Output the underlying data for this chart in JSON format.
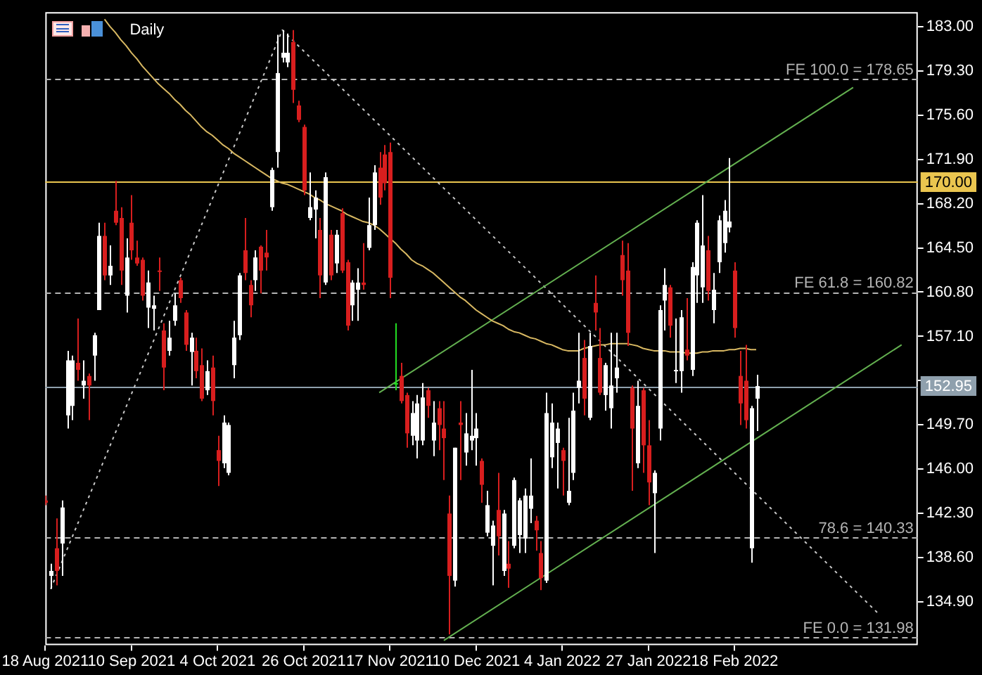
{
  "chart_data": {
    "type": "candlestick",
    "title": "Daily",
    "categories": [
      "18 Aug 2021",
      null,
      null,
      null,
      null,
      null,
      null,
      null,
      null,
      null,
      null,
      null,
      null,
      null,
      null,
      null,
      "10 Sep 2021",
      null,
      null,
      null,
      null,
      null,
      null,
      null,
      null,
      null,
      null,
      null,
      null,
      null,
      null,
      null,
      "4 Oct 2021",
      null,
      null,
      null,
      null,
      null,
      null,
      null,
      null,
      null,
      null,
      null,
      null,
      null,
      null,
      null,
      "26 Oct 2021",
      null,
      null,
      null,
      null,
      null,
      null,
      null,
      null,
      null,
      null,
      null,
      null,
      null,
      null,
      null,
      "17 Nov 2021",
      null,
      null,
      null,
      null,
      null,
      null,
      null,
      null,
      null,
      null,
      null,
      null,
      null,
      null,
      null,
      "10 Dec 2021",
      null,
      null,
      null,
      null,
      null,
      null,
      null,
      null,
      null,
      null,
      null,
      null,
      null,
      null,
      null,
      "4 Jan 2022",
      null,
      null,
      null,
      null,
      null,
      null,
      null,
      null,
      null,
      null,
      null,
      null,
      null,
      null,
      null,
      "27 Jan 2022",
      null,
      null,
      null,
      null,
      null,
      null,
      null,
      null,
      null,
      null,
      null,
      null,
      null,
      null,
      null,
      "18 Feb 2022",
      null,
      null,
      null,
      null,
      null,
      null,
      null,
      null,
      null,
      null,
      null,
      null,
      null,
      null,
      null,
      null,
      null,
      null,
      null,
      null,
      null,
      null,
      null,
      null,
      null,
      null,
      null,
      null,
      null,
      null,
      null,
      null,
      null,
      null
    ],
    "ohlc": [
      [
        143.4,
        143.8,
        143.0,
        143.2
      ],
      [
        137.1,
        138.1,
        136.0,
        137.5
      ],
      [
        139.4,
        141.9,
        136.3,
        137.5
      ],
      [
        139.8,
        143.4,
        137.1,
        142.8
      ],
      [
        150.5,
        155.9,
        149.4,
        155.1
      ],
      [
        151.3,
        155.5,
        150.1,
        155.1
      ],
      [
        154.9,
        158.6,
        153.4,
        154.3
      ],
      [
        153.0,
        155.1,
        151.9,
        153.4
      ],
      [
        153.8,
        154.0,
        150.1,
        153.0
      ],
      [
        155.5,
        157.4,
        153.4,
        157.2
      ],
      [
        159.3,
        166.6,
        159.3,
        165.5
      ],
      [
        165.5,
        166.6,
        161.8,
        162.2
      ],
      [
        162.2,
        164.7,
        161.4,
        163.0
      ],
      [
        167.6,
        170.1,
        166.4,
        166.6
      ],
      [
        167.0,
        167.9,
        161.4,
        162.6
      ],
      [
        160.5,
        165.3,
        159.1,
        163.7
      ],
      [
        166.6,
        168.9,
        163.5,
        164.3
      ],
      [
        163.7,
        165.1,
        163.0,
        163.2
      ],
      [
        163.5,
        163.7,
        160.1,
        160.5
      ],
      [
        159.5,
        162.6,
        157.8,
        161.6
      ],
      [
        159.4,
        160.5,
        157.6,
        159.7
      ],
      [
        162.6,
        163.7,
        160.9,
        162.5
      ],
      [
        157.6,
        158.2,
        152.6,
        154.5
      ],
      [
        155.9,
        158.4,
        155.5,
        157.0
      ],
      [
        158.4,
        160.7,
        158.0,
        159.7
      ],
      [
        161.8,
        162.0,
        159.9,
        160.3
      ],
      [
        159.1,
        159.3,
        155.9,
        156.4
      ],
      [
        155.8,
        157.4,
        153.0,
        157.0
      ],
      [
        155.9,
        157.0,
        153.6,
        154.2
      ],
      [
        154.7,
        156.1,
        151.7,
        151.9
      ],
      [
        152.6,
        155.1,
        152.2,
        154.2
      ],
      [
        154.5,
        155.5,
        150.5,
        151.7
      ],
      [
        147.6,
        148.8,
        144.6,
        146.7
      ],
      [
        146.5,
        150.5,
        146.1,
        149.9
      ],
      [
        145.7,
        149.9,
        145.5,
        149.7
      ],
      [
        154.7,
        158.4,
        153.6,
        157.0
      ],
      [
        157.2,
        162.4,
        156.8,
        162.2
      ],
      [
        164.3,
        167.0,
        161.8,
        162.4
      ],
      [
        161.4,
        161.8,
        158.7,
        159.7
      ],
      [
        161.8,
        164.3,
        160.9,
        163.7
      ],
      [
        164.6,
        164.7,
        160.7,
        162.6
      ],
      [
        164.1,
        166.0,
        162.6,
        163.7
      ],
      [
        167.9,
        171.2,
        167.6,
        171.0
      ],
      [
        172.5,
        182.3,
        171.2,
        179.1
      ],
      [
        180.4,
        182.7,
        180.0,
        180.8
      ],
      [
        180.0,
        182.4,
        179.6,
        180.8
      ],
      [
        181.7,
        182.7,
        176.6,
        177.7
      ],
      [
        176.4,
        176.8,
        175.0,
        175.2
      ],
      [
        174.6,
        174.8,
        168.9,
        169.3
      ],
      [
        167.0,
        170.8,
        166.8,
        167.9
      ],
      [
        167.7,
        169.3,
        165.3,
        168.7
      ],
      [
        166.0,
        167.0,
        160.3,
        162.2
      ],
      [
        161.6,
        170.8,
        161.4,
        170.4
      ],
      [
        165.6,
        166.0,
        161.8,
        162.2
      ],
      [
        163.2,
        166.0,
        162.4,
        165.6
      ],
      [
        167.4,
        167.8,
        162.4,
        162.6
      ],
      [
        163.3,
        163.5,
        157.6,
        158.0
      ],
      [
        159.7,
        161.8,
        158.4,
        161.6
      ],
      [
        161.0,
        162.8,
        158.4,
        161.6
      ],
      [
        161.6,
        164.9,
        161.0,
        161.4
      ],
      [
        164.5,
        168.7,
        164.3,
        166.4
      ],
      [
        166.4,
        171.4,
        166.0,
        170.8
      ],
      [
        171.2,
        172.5,
        168.1,
        168.7
      ],
      [
        172.3,
        173.1,
        169.3,
        169.9
      ],
      [
        172.5,
        173.3,
        160.3,
        162.0
      ],
      [
        153.2,
        158.2,
        152.6,
        153.2
      ],
      [
        153.8,
        154.9,
        151.5,
        151.7
      ],
      [
        152.2,
        152.4,
        147.8,
        149.0
      ],
      [
        148.8,
        151.7,
        148.0,
        150.7
      ],
      [
        148.4,
        152.2,
        146.9,
        151.5
      ],
      [
        148.4,
        153.2,
        148.0,
        152.0
      ],
      [
        152.6,
        152.8,
        150.3,
        151.3
      ],
      [
        148.4,
        151.7,
        147.1,
        149.9
      ],
      [
        151.1,
        151.7,
        147.6,
        149.7
      ],
      [
        149.4,
        151.7,
        145.1,
        148.6
      ],
      [
        142.3,
        143.8,
        132.2,
        137.1
      ],
      [
        136.7,
        147.8,
        136.2,
        147.8
      ],
      [
        149.9,
        151.7,
        145.1,
        149.7
      ],
      [
        147.4,
        150.7,
        146.3,
        149.0
      ],
      [
        148.4,
        154.3,
        147.6,
        148.8
      ],
      [
        148.6,
        150.7,
        146.3,
        149.4
      ],
      [
        146.7,
        146.9,
        143.2,
        144.7
      ],
      [
        140.7,
        144.2,
        140.4,
        143.0
      ],
      [
        139.6,
        141.7,
        136.3,
        141.3
      ],
      [
        142.6,
        145.7,
        138.8,
        140.4
      ],
      [
        137.5,
        142.6,
        137.1,
        142.3
      ],
      [
        138.1,
        140.0,
        136.1,
        137.7
      ],
      [
        139.6,
        145.3,
        139.4,
        145.1
      ],
      [
        140.5,
        143.6,
        139.0,
        143.4
      ],
      [
        140.2,
        144.4,
        139.0,
        143.8
      ],
      [
        142.7,
        146.9,
        141.5,
        143.8
      ],
      [
        141.7,
        142.1,
        139.2,
        140.9
      ],
      [
        139.0,
        140.0,
        135.9,
        136.9
      ],
      [
        136.7,
        152.4,
        136.5,
        150.7
      ],
      [
        147.0,
        151.5,
        146.1,
        149.9
      ],
      [
        148.2,
        149.9,
        144.4,
        149.4
      ],
      [
        147.6,
        147.8,
        143.8,
        146.7
      ],
      [
        143.2,
        150.3,
        143.0,
        144.2
      ],
      [
        145.7,
        152.4,
        145.1,
        150.9
      ],
      [
        152.8,
        157.4,
        151.5,
        153.4
      ],
      [
        155.3,
        156.8,
        150.5,
        151.9
      ],
      [
        150.3,
        157.4,
        150.1,
        156.3
      ],
      [
        159.9,
        162.2,
        157.6,
        159.1
      ],
      [
        155.3,
        157.8,
        152.2,
        152.4
      ],
      [
        152.2,
        154.9,
        150.9,
        154.7
      ],
      [
        151.1,
        157.4,
        149.4,
        153.0
      ],
      [
        153.6,
        157.4,
        152.4,
        154.5
      ],
      [
        163.9,
        165.1,
        160.5,
        161.8
      ],
      [
        162.6,
        164.9,
        156.3,
        157.4
      ],
      [
        152.8,
        153.0,
        144.2,
        149.4
      ],
      [
        146.5,
        153.4,
        146.1,
        151.3
      ],
      [
        152.6,
        152.8,
        145.7,
        148.0
      ],
      [
        148.0,
        150.1,
        143.0,
        144.9
      ],
      [
        144.0,
        145.9,
        139.0,
        145.7
      ],
      [
        149.4,
        159.7,
        148.4,
        159.3
      ],
      [
        160.1,
        162.8,
        157.6,
        161.4
      ],
      [
        161.2,
        161.4,
        157.0,
        158.0
      ],
      [
        154.2,
        158.6,
        153.2,
        154.3
      ],
      [
        154.2,
        159.3,
        152.4,
        158.7
      ],
      [
        156.0,
        160.3,
        155.1,
        155.5
      ],
      [
        154.3,
        163.3,
        153.8,
        162.9
      ],
      [
        162.2,
        166.8,
        159.9,
        166.6
      ],
      [
        161.2,
        168.9,
        159.9,
        164.7
      ],
      [
        164.3,
        165.5,
        160.1,
        160.9
      ],
      [
        159.3,
        162.4,
        158.2,
        161.0
      ],
      [
        163.3,
        167.2,
        162.4,
        166.8
      ],
      [
        164.9,
        168.5,
        164.1,
        167.6
      ],
      [
        166.2,
        172.0,
        165.8,
        166.7
      ],
      [
        162.6,
        163.3,
        157.0,
        157.8
      ],
      [
        153.8,
        155.9,
        149.7,
        151.5
      ],
      [
        153.4,
        156.4,
        149.4,
        150.1
      ],
      [
        139.4,
        151.3,
        138.2,
        151.1
      ],
      [
        151.9,
        153.9,
        149.2,
        152.95
      ],
      null,
      null,
      null,
      null,
      null,
      null,
      null,
      null,
      null,
      null,
      null,
      null,
      null,
      null,
      null,
      null,
      null,
      null,
      null,
      null,
      null,
      null,
      null,
      null,
      null,
      null,
      null,
      null,
      null,
      null
    ],
    "colors": [
      "#d81e1e",
      "#ffffff",
      "#d81e1e",
      "#ffffff",
      "#ffffff",
      "#ffffff",
      "#d81e1e",
      "#ffffff",
      "#d81e1e",
      "#ffffff",
      "#ffffff",
      "#d81e1e",
      "#ffffff",
      "#d81e1e",
      "#d81e1e",
      "#ffffff",
      "#d81e1e",
      "#d81e1e",
      "#d81e1e",
      "#ffffff",
      "#ffffff",
      "#d81e1e",
      "#d81e1e",
      "#ffffff",
      "#ffffff",
      "#d81e1e",
      "#d81e1e",
      "#ffffff",
      "#d81e1e",
      "#d81e1e",
      "#ffffff",
      "#d81e1e",
      "#d81e1e",
      "#ffffff",
      "#ffffff",
      "#ffffff",
      "#ffffff",
      "#d81e1e",
      "#d81e1e",
      "#ffffff",
      "#d81e1e",
      "#d81e1e",
      "#ffffff",
      "#ffffff",
      "#ffffff",
      "#ffffff",
      "#d81e1e",
      "#d81e1e",
      "#d81e1e",
      "#ffffff",
      "#ffffff",
      "#d81e1e",
      "#ffffff",
      "#d81e1e",
      "#ffffff",
      "#d81e1e",
      "#d81e1e",
      "#ffffff",
      "#ffffff",
      "#d81e1e",
      "#ffffff",
      "#ffffff",
      "#d81e1e",
      "#d81e1e",
      "#d81e1e",
      "#22dd22",
      "#d81e1e",
      "#d81e1e",
      "#ffffff",
      "#ffffff",
      "#ffffff",
      "#d81e1e",
      "#ffffff",
      "#d81e1e",
      "#d81e1e",
      "#d81e1e",
      "#ffffff",
      "#d81e1e",
      "#ffffff",
      "#ffffff",
      "#ffffff",
      "#d81e1e",
      "#ffffff",
      "#ffffff",
      "#d81e1e",
      "#ffffff",
      "#d81e1e",
      "#ffffff",
      "#ffffff",
      "#ffffff",
      "#ffffff",
      "#d81e1e",
      "#d81e1e",
      "#ffffff",
      "#ffffff",
      "#ffffff",
      "#d81e1e",
      "#ffffff",
      "#ffffff",
      "#ffffff",
      "#d81e1e",
      "#ffffff",
      "#d81e1e",
      "#d81e1e",
      "#ffffff",
      "#ffffff",
      "#ffffff",
      "#d81e1e",
      "#d81e1e",
      "#d81e1e",
      "#ffffff",
      "#d81e1e",
      "#d81e1e",
      "#ffffff",
      "#ffffff",
      "#ffffff",
      "#d81e1e",
      "#ffffff",
      "#ffffff",
      "#d81e1e",
      "#ffffff",
      "#ffffff",
      "#ffffff",
      "#d81e1e",
      "#ffffff",
      "#ffffff",
      "#ffffff",
      "#ffffff",
      "#d81e1e",
      "#d81e1e",
      "#d81e1e",
      "#ffffff",
      "#ffffff",
      null,
      null,
      null,
      null,
      null,
      null,
      null,
      null,
      null,
      null,
      null,
      null,
      null,
      null,
      null,
      null,
      null,
      null,
      null,
      null,
      null,
      null,
      null,
      null,
      null,
      null,
      null,
      null,
      null,
      null
    ],
    "series": [
      {
        "type": "line",
        "color": "#d8b862",
        "values": [
          null,
          null,
          null,
          null,
          null,
          null,
          null,
          null,
          null,
          null,
          null,
          183.6,
          183.0,
          182.5,
          181.9,
          181.4,
          180.8,
          180.3,
          179.7,
          179.2,
          178.7,
          178.2,
          177.8,
          177.4,
          176.9,
          176.5,
          176.0,
          175.6,
          175.1,
          174.6,
          174.2,
          173.9,
          173.5,
          173.1,
          172.8,
          172.4,
          172.1,
          171.8,
          171.5,
          171.2,
          170.9,
          170.6,
          170.3,
          170.1,
          169.9,
          169.8,
          169.6,
          169.4,
          169.2,
          169.0,
          168.7,
          168.5,
          168.2,
          168.0,
          167.8,
          167.6,
          167.3,
          167.1,
          166.9,
          166.7,
          166.6,
          166.4,
          166.1,
          165.7,
          165.3,
          164.9,
          164.4,
          164.0,
          163.5,
          163.2,
          163.0,
          162.7,
          162.4,
          162.0,
          161.6,
          161.2,
          160.8,
          160.4,
          160.1,
          159.7,
          159.3,
          159.0,
          158.7,
          158.4,
          158.2,
          158.0,
          157.7,
          157.5,
          157.4,
          157.2,
          157.0,
          156.9,
          156.7,
          156.5,
          156.4,
          156.2,
          156.0,
          155.9,
          155.9,
          155.9,
          156.1,
          156.2,
          156.3,
          156.4,
          156.4,
          156.5,
          156.5,
          156.5,
          156.5,
          156.4,
          156.3,
          156.1,
          156.0,
          155.9,
          155.9,
          155.9,
          155.8,
          155.8,
          155.8,
          155.7,
          155.7,
          155.7,
          155.8,
          155.8,
          155.9,
          155.9,
          155.9,
          156.0,
          156.0,
          156.1,
          156.1,
          156.0,
          156.0,
          null,
          null,
          null,
          null,
          null,
          null,
          null,
          null,
          null,
          null,
          null,
          null,
          null,
          null,
          null,
          null,
          null,
          null,
          null,
          null,
          null,
          null,
          null,
          null,
          null,
          null,
          null,
          null,
          null,
          null
        ]
      },
      {
        "type": "line",
        "color": "#63b050",
        "values": [
          null,
          null,
          null,
          null,
          null,
          null,
          null,
          null,
          null,
          null,
          null,
          null,
          null,
          null,
          null,
          null,
          null,
          null,
          null,
          null,
          null,
          null,
          null,
          null,
          null,
          null,
          null,
          null,
          null,
          null,
          null,
          null,
          null,
          null,
          null,
          null,
          null,
          null,
          null,
          null,
          null,
          null,
          null,
          null,
          null,
          null,
          null,
          null,
          null,
          null,
          null,
          null,
          null,
          null,
          null,
          null,
          null,
          null,
          null,
          null,
          null,
          null,
          152.4,
          null,
          null,
          null,
          null,
          null,
          null,
          null,
          null,
          null,
          null,
          null,
          null,
          null,
          null,
          null,
          null,
          null,
          null,
          null,
          null,
          null,
          null,
          null,
          null,
          null,
          null,
          null,
          null,
          null,
          null,
          null,
          null,
          null,
          null,
          null,
          null,
          null,
          null,
          null,
          null,
          null,
          null,
          null,
          null,
          null,
          null,
          null,
          null,
          null,
          null,
          null,
          null,
          null,
          null,
          null,
          null,
          null,
          null,
          null,
          null,
          null,
          null,
          null,
          null,
          null,
          null,
          null,
          null,
          null,
          null,
          null,
          null,
          null,
          null,
          null,
          null,
          null,
          null,
          null,
          null,
          null,
          null,
          null,
          null,
          null,
          null,
          null,
          177.9,
          null,
          null,
          null,
          null,
          null,
          null,
          null,
          null,
          null,
          null,
          null,
          null
        ]
      },
      {
        "type": "line",
        "color": "#63b050",
        "values": [
          null,
          null,
          null,
          null,
          null,
          null,
          null,
          null,
          null,
          null,
          null,
          null,
          null,
          null,
          null,
          null,
          null,
          null,
          null,
          null,
          null,
          null,
          null,
          null,
          null,
          null,
          null,
          null,
          null,
          null,
          null,
          null,
          null,
          null,
          null,
          null,
          null,
          null,
          null,
          null,
          null,
          null,
          null,
          null,
          null,
          null,
          null,
          null,
          null,
          null,
          null,
          null,
          null,
          null,
          null,
          null,
          null,
          null,
          null,
          null,
          null,
          null,
          null,
          null,
          null,
          null,
          null,
          null,
          null,
          null,
          null,
          null,
          null,
          null,
          131.7,
          null,
          null,
          null,
          null,
          null,
          null,
          null,
          null,
          null,
          null,
          null,
          null,
          null,
          null,
          null,
          null,
          null,
          null,
          null,
          null,
          null,
          null,
          null,
          null,
          null,
          null,
          null,
          null,
          null,
          null,
          null,
          null,
          null,
          null,
          null,
          null,
          null,
          null,
          null,
          null,
          null,
          null,
          null,
          null,
          null,
          null,
          null,
          null,
          null,
          null,
          null,
          null,
          null,
          null,
          null,
          null,
          null,
          null,
          null,
          null,
          null,
          null,
          null,
          null,
          null,
          null,
          null,
          null,
          null,
          null,
          null,
          null,
          null,
          null,
          null,
          null,
          null,
          null,
          null,
          null,
          null,
          null,
          null,
          null,
          156.4,
          null,
          null,
          null
        ]
      },
      {
        "type": "line",
        "color": "#c8c8c8",
        "line_style": "dotted",
        "values": [
          null,
          136.0,
          null,
          null,
          null,
          null,
          null,
          null,
          null,
          null,
          null,
          null,
          null,
          null,
          null,
          null,
          null,
          null,
          null,
          null,
          null,
          null,
          null,
          null,
          null,
          null,
          null,
          null,
          null,
          null,
          null,
          null,
          null,
          null,
          null,
          null,
          null,
          null,
          null,
          null,
          null,
          null,
          null,
          null,
          182.7,
          null,
          null,
          null,
          null,
          null,
          null,
          null,
          null,
          null,
          null,
          null,
          null,
          null,
          null,
          null,
          null,
          null,
          null,
          null,
          null,
          null,
          null,
          null,
          null,
          null,
          null,
          null,
          null,
          null,
          null,
          null,
          null,
          null,
          null,
          null,
          null,
          null,
          null,
          null,
          null,
          null,
          null,
          null,
          null,
          null,
          null,
          null,
          null,
          null,
          null,
          null,
          null,
          null,
          null,
          null,
          null,
          null,
          null,
          null,
          null,
          null,
          null,
          null,
          null,
          null,
          null,
          null,
          null,
          null,
          null,
          null,
          null,
          null,
          null,
          null,
          null,
          null,
          null,
          null,
          null,
          null,
          null,
          null,
          null,
          null,
          null,
          null,
          null,
          null,
          null,
          null,
          null,
          null,
          null,
          null,
          null,
          null,
          null,
          null,
          null,
          null,
          null,
          null,
          null,
          null,
          null,
          null,
          null,
          null,
          null,
          133.8,
          null,
          null,
          null,
          null,
          null,
          null,
          null
        ]
      }
    ],
    "ylim": [
      131.3,
      184.2
    ],
    "yticks": [
      {
        "value": 183,
        "label": "183.00"
      },
      {
        "value": 179.3,
        "label": "179.30"
      },
      {
        "value": 175.6,
        "label": "175.60"
      },
      {
        "value": 171.9,
        "label": "171.90"
      },
      {
        "value": 168.2,
        "label": "168.20"
      },
      {
        "value": 164.5,
        "label": "164.50"
      },
      {
        "value": 160.8,
        "label": "160.80"
      },
      {
        "value": 157.1,
        "label": "157.10"
      },
      {
        "value": 153.4,
        "label": null
      },
      {
        "value": 149.7,
        "label": "149.70"
      },
      {
        "value": 146,
        "label": "146.00"
      },
      {
        "value": 142.3,
        "label": "142.30"
      },
      {
        "value": 138.6,
        "label": "138.60"
      },
      {
        "value": 134.9,
        "label": "134.90"
      }
    ],
    "ref_lines": [
      {
        "axis": "y",
        "value": 178.65,
        "label": "FE 100.0 = 178.65",
        "color": "#b4b4b4",
        "line_style": "dashed"
      },
      {
        "axis": "y",
        "value": 170,
        "label": "170.00",
        "color": "#eac54f",
        "line_style": "solid"
      },
      {
        "axis": "y",
        "value": 160.82,
        "label": "FE 61.8 = 160.82",
        "color": "#b4b4b4",
        "line_style": "dashed"
      },
      {
        "axis": "y",
        "value": 152.95,
        "label": "152.95",
        "color": "#8fa0ad",
        "line_style": "solid"
      },
      {
        "axis": "y",
        "value": 140.33,
        "label": "78.6 = 140.33",
        "color": "#b4b4b4",
        "line_style": "dashed"
      },
      {
        "axis": "y",
        "value": 131.98,
        "label": "FE 0.0 = 131.98",
        "color": "#b4b4b4",
        "line_style": "dashed"
      }
    ]
  }
}
